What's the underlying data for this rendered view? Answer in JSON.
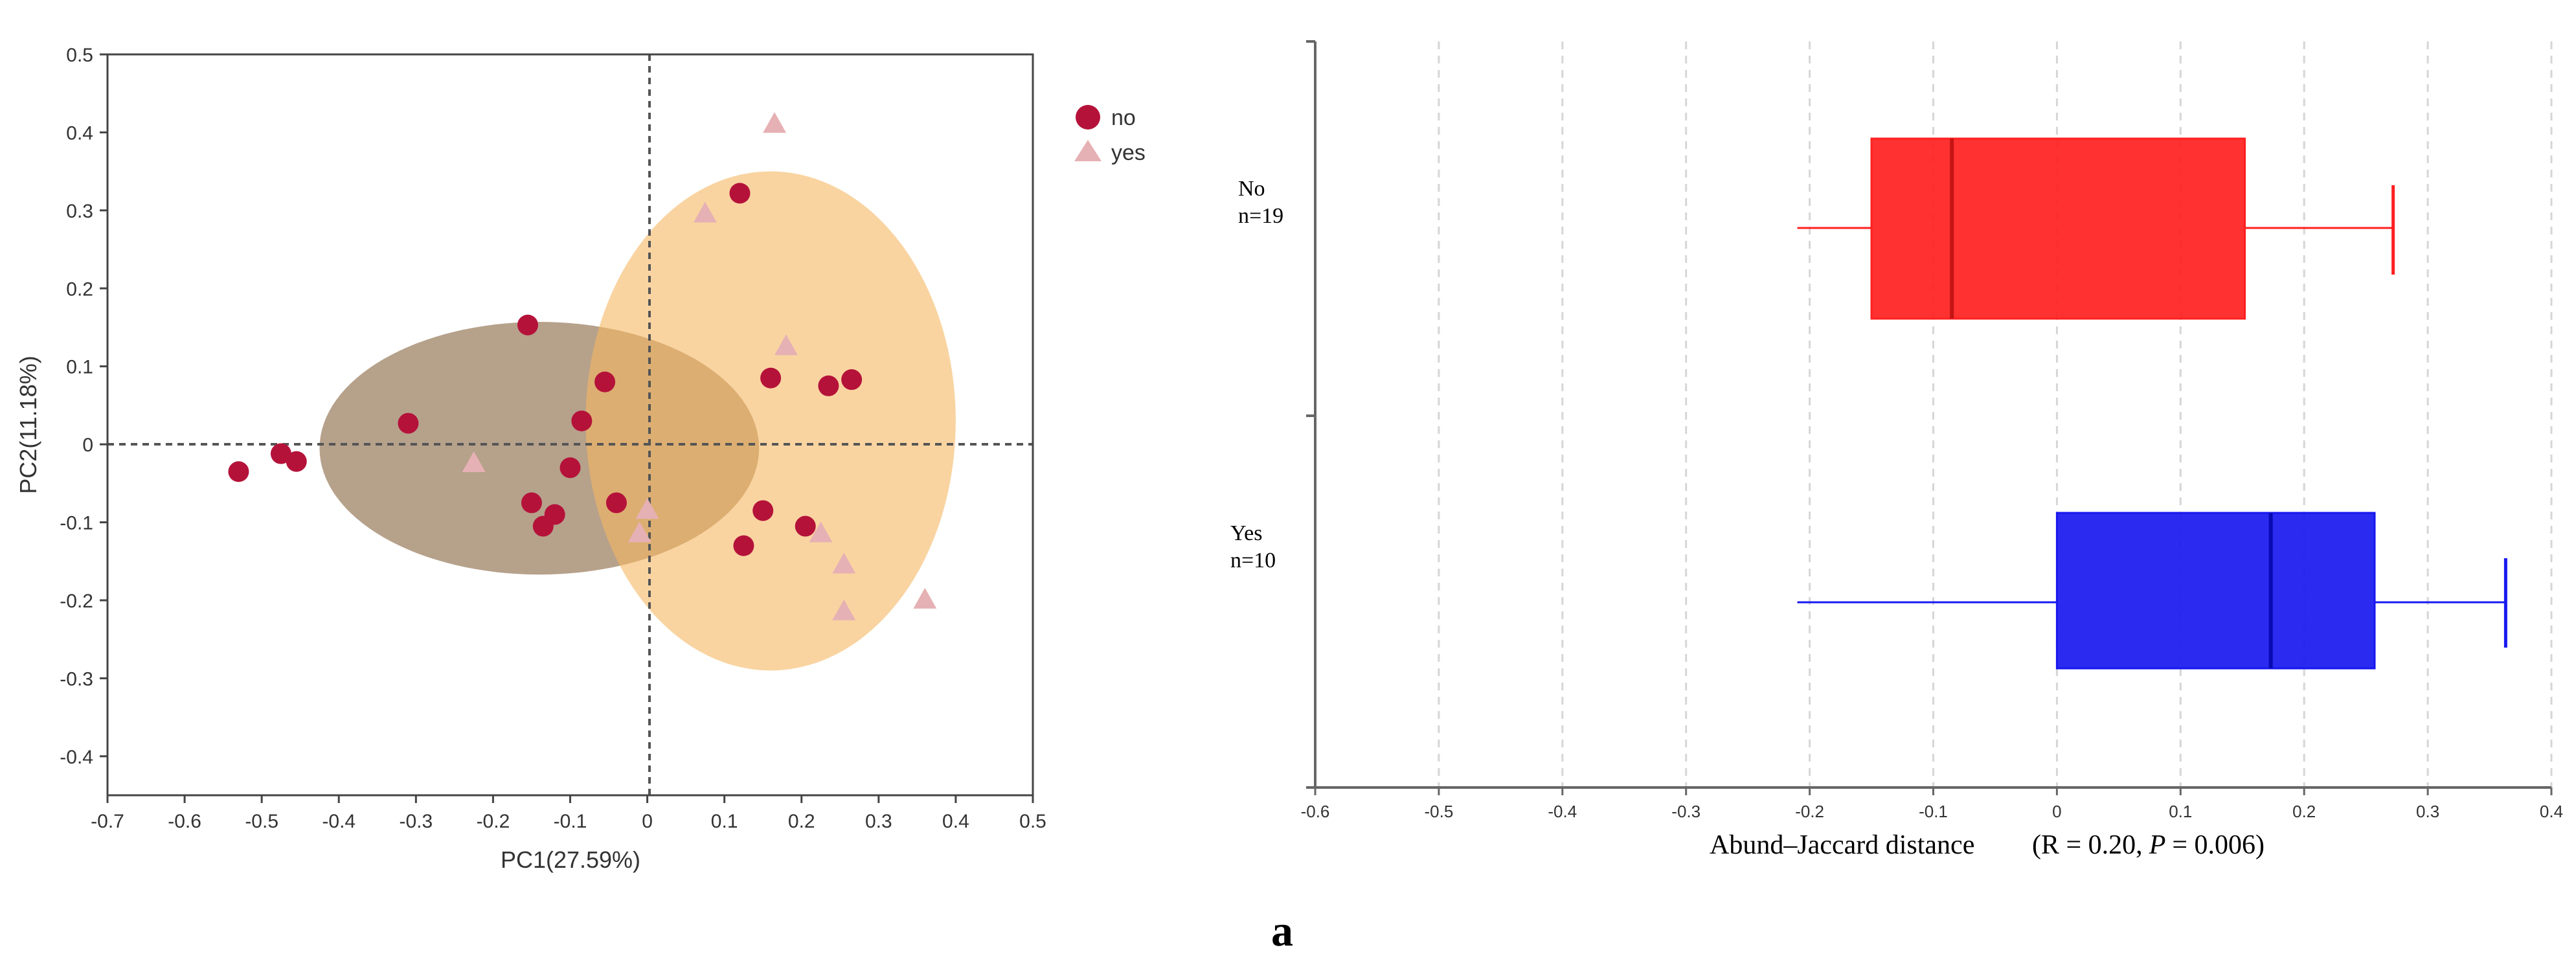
{
  "figure_label": "a",
  "colors": {
    "no_marker": "#b5123a",
    "yes_marker": "#e6b1b4",
    "ellipse_no": "#a1866a",
    "ellipse_yes": "#f5b862",
    "box_no": "#ff2020",
    "box_yes": "#1818f0",
    "axis": "#555555"
  },
  "chart_data": [
    {
      "type": "scatter",
      "title": "",
      "xlabel": "PC1(27.59%)",
      "ylabel": "PC2(11.18%)",
      "xlim": [
        -0.7,
        0.5
      ],
      "ylim": [
        -0.45,
        0.5
      ],
      "x_ticks": [
        "-0.7",
        "-0.6",
        "-0.5",
        "-0.4",
        "-0.3",
        "-0.2",
        "-0.1",
        "0",
        "0.1",
        "0.2",
        "0.3",
        "0.4",
        "0.5"
      ],
      "y_ticks": [
        "0.5",
        "0.4",
        "0.3",
        "0.2",
        "0.1",
        "0",
        "-0.1",
        "-0.2",
        "-0.3",
        "-0.4"
      ],
      "legend_position": "top-right, outside plot",
      "series": [
        {
          "name": "no",
          "marker": "circle",
          "points": [
            [
              -0.53,
              -0.035
            ],
            [
              -0.475,
              -0.012
            ],
            [
              -0.455,
              -0.022
            ],
            [
              -0.31,
              0.027
            ],
            [
              -0.155,
              0.153
            ],
            [
              -0.15,
              -0.075
            ],
            [
              -0.135,
              -0.105
            ],
            [
              -0.12,
              -0.09
            ],
            [
              -0.1,
              -0.03
            ],
            [
              -0.085,
              0.03
            ],
            [
              -0.055,
              0.08
            ],
            [
              -0.04,
              -0.075
            ],
            [
              0.12,
              0.322
            ],
            [
              0.125,
              -0.13
            ],
            [
              0.15,
              -0.085
            ],
            [
              0.16,
              0.085
            ],
            [
              0.205,
              -0.105
            ],
            [
              0.235,
              0.075
            ],
            [
              0.265,
              0.083
            ]
          ]
        },
        {
          "name": "yes",
          "marker": "triangle",
          "points": [
            [
              0.165,
              0.41
            ],
            [
              0.075,
              0.295
            ],
            [
              0.18,
              0.125
            ],
            [
              -0.225,
              -0.025
            ],
            [
              -0.01,
              -0.115
            ],
            [
              0.0,
              -0.085
            ],
            [
              0.225,
              -0.115
            ],
            [
              0.255,
              -0.155
            ],
            [
              0.255,
              -0.215
            ],
            [
              0.36,
              -0.2
            ]
          ]
        }
      ],
      "ellipses": [
        {
          "group": "no",
          "cx": -0.14,
          "cy": -0.005,
          "rx": 0.285,
          "ry": 0.162,
          "angle": 0
        },
        {
          "group": "yes",
          "cx": 0.16,
          "cy": 0.03,
          "rx": 0.24,
          "ry": 0.32,
          "angle": 0
        }
      ]
    },
    {
      "type": "boxplot",
      "title": "",
      "xlabel": "Abund–Jaccard distance",
      "stat_label": "(R = 0.20,",
      "p_symbol": "P",
      "p_text": "= 0.006)",
      "xlim": [
        -0.6,
        0.4
      ],
      "x_ticks": [
        "-0.6",
        "-0.5",
        "-0.4",
        "-0.3",
        "-0.2",
        "-0.1",
        "0",
        "0.1",
        "0.2",
        "0.3",
        "0.4"
      ],
      "grid": "vertical dashed",
      "groups": [
        {
          "name": "No",
          "n_label": "n=19",
          "whisker_low": -0.21,
          "q1": -0.15,
          "median": -0.085,
          "q3": 0.152,
          "whisker_high": 0.272
        },
        {
          "name": "Yes",
          "n_label": "n=10",
          "whisker_low": -0.21,
          "q1": 0.0,
          "median": 0.173,
          "q3": 0.257,
          "whisker_high": 0.363
        }
      ]
    }
  ]
}
